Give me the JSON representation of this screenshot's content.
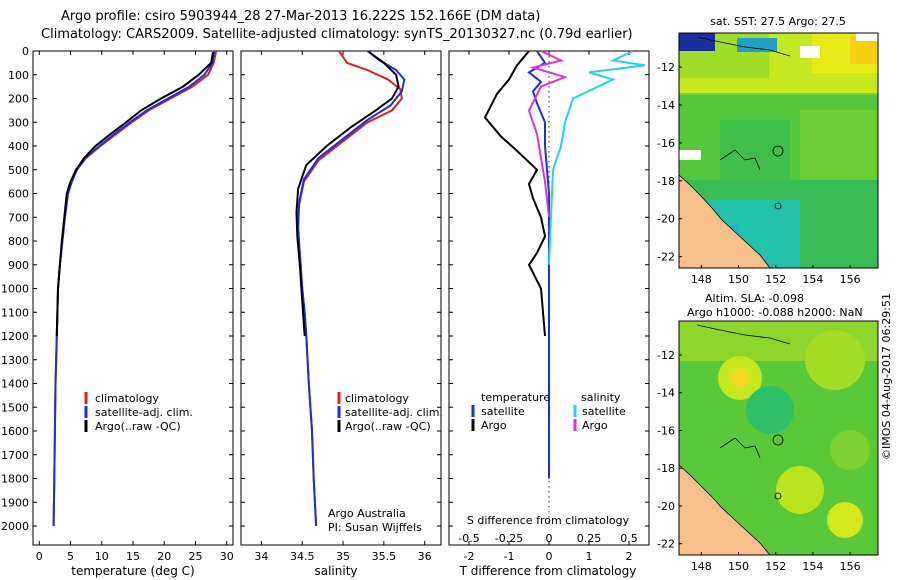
{
  "header": {
    "line1": "Argo profile: csiro 5903944_28 27-Mar-2013 16.222S 152.166E (DM data)",
    "line2": "Climatology: CARS2009. Satellite-adjusted climatology: synTS_20130327.nc (0.79d earlier)"
  },
  "colors": {
    "climatology": "#e02020",
    "satellite": "#1a2fe0",
    "argo": "#000000",
    "sat_salinity": "#22d6e6",
    "argo_salinity": "#e030e0"
  },
  "chart_data": [
    {
      "type": "line",
      "id": "temperature",
      "xlabel": "temperature (deg C)",
      "ylabel": "",
      "xlim": [
        -1,
        31
      ],
      "ylim": [
        2080,
        0
      ],
      "xticks": [
        0,
        5,
        10,
        15,
        20,
        25,
        30
      ],
      "yticks": [
        0,
        100,
        200,
        300,
        400,
        500,
        600,
        700,
        800,
        900,
        1000,
        1100,
        1200,
        1300,
        1400,
        1500,
        1600,
        1700,
        1800,
        1900,
        2000
      ],
      "legend": [
        "climatology",
        "satellite-adj. clim.",
        "Argo(..raw -QC)"
      ],
      "series": [
        {
          "name": "climatology",
          "color": "#e02020",
          "x": [
            28.3,
            27.9,
            27.0,
            24.5,
            21.0,
            17.5,
            14.8,
            12.3,
            9.8,
            7.5,
            6.0,
            5.2,
            4.6,
            4.1,
            3.7,
            3.3,
            3.0,
            2.8,
            2.6,
            2.5,
            2.4,
            2.3
          ],
          "y": [
            0,
            50,
            100,
            150,
            200,
            250,
            300,
            350,
            400,
            450,
            500,
            550,
            600,
            700,
            800,
            900,
            1000,
            1200,
            1400,
            1600,
            1800,
            2000
          ]
        },
        {
          "name": "satellite-adj. clim.",
          "color": "#1a2fe0",
          "x": [
            28.0,
            27.7,
            26.4,
            24.0,
            20.6,
            17.2,
            14.5,
            12.0,
            9.6,
            7.4,
            6.0,
            5.2,
            4.6,
            4.1,
            3.7,
            3.3,
            3.0,
            2.8,
            2.6,
            2.5,
            2.4,
            2.3
          ],
          "y": [
            0,
            50,
            100,
            150,
            200,
            250,
            300,
            350,
            400,
            450,
            500,
            550,
            600,
            700,
            800,
            900,
            1000,
            1200,
            1400,
            1600,
            1800,
            2000
          ]
        },
        {
          "name": "Argo(..raw -QC)",
          "color": "#000000",
          "x": [
            27.8,
            27.5,
            25.5,
            23.0,
            19.5,
            16.3,
            13.9,
            11.4,
            9.0,
            7.2,
            5.9,
            5.0,
            4.4,
            4.0,
            3.6,
            3.3,
            3.0,
            2.9,
            2.8
          ],
          "y": [
            5,
            50,
            100,
            150,
            200,
            250,
            300,
            350,
            400,
            450,
            500,
            550,
            600,
            700,
            800,
            900,
            1000,
            1100,
            1200
          ]
        }
      ]
    },
    {
      "type": "line",
      "id": "salinity",
      "xlabel": "salinity",
      "xlim": [
        33.75,
        36.2
      ],
      "ylim": [
        2080,
        0
      ],
      "xticks": [
        34,
        34.5,
        35,
        35.5,
        36
      ],
      "legend": [
        "climatology",
        "satellite-adj. clim.",
        "Argo(..raw -QC)"
      ],
      "annotation": [
        "Argo Australia",
        "PI: Susan Wijffels"
      ],
      "series": [
        {
          "name": "climatology",
          "color": "#e02020",
          "x": [
            34.95,
            35.05,
            35.3,
            35.55,
            35.7,
            35.72,
            35.6,
            35.3,
            35.0,
            34.7,
            34.52,
            34.46,
            34.45,
            34.47,
            34.5,
            34.53,
            34.55,
            34.58,
            34.62,
            34.64,
            34.67
          ],
          "y": [
            0,
            50,
            80,
            120,
            160,
            200,
            250,
            300,
            380,
            460,
            550,
            650,
            750,
            850,
            1000,
            1100,
            1200,
            1400,
            1600,
            1800,
            2000
          ]
        },
        {
          "name": "satellite-adj. clim.",
          "color": "#1a2fe0",
          "x": [
            35.3,
            35.45,
            35.65,
            35.75,
            35.72,
            35.58,
            35.3,
            35.0,
            34.7,
            34.52,
            34.46,
            34.45,
            34.47,
            34.5,
            34.53,
            34.55,
            34.58,
            34.62,
            34.64,
            34.67
          ],
          "y": [
            0,
            40,
            80,
            120,
            170,
            230,
            290,
            370,
            450,
            540,
            640,
            740,
            850,
            1000,
            1100,
            1200,
            1400,
            1600,
            1800,
            2000
          ]
        },
        {
          "name": "Argo(..raw -QC)",
          "color": "#000000",
          "x": [
            35.32,
            35.5,
            35.65,
            35.68,
            35.6,
            35.4,
            35.1,
            34.8,
            34.55,
            34.45,
            34.43,
            34.44,
            34.47,
            34.5,
            34.53
          ],
          "y": [
            5,
            50,
            100,
            150,
            200,
            250,
            320,
            400,
            480,
            580,
            680,
            780,
            900,
            1050,
            1200
          ]
        }
      ]
    },
    {
      "type": "line",
      "id": "difference",
      "xlabel": "T difference from climatology",
      "xlabel_top": "S difference from climatology",
      "xlim": [
        -2.5,
        2.5
      ],
      "ylim": [
        2080,
        0
      ],
      "xticks_T": [
        -2,
        -1,
        0,
        1,
        2
      ],
      "xticks_S": [
        -0.5,
        -0.25,
        0,
        0.25,
        0.5
      ],
      "legend_titles": [
        "temperature",
        "salinity"
      ],
      "legend_T": [
        "satellite",
        "Argo"
      ],
      "legend_S": [
        "satellite",
        "Argo"
      ],
      "series": [
        {
          "name": "T satellite",
          "color": "#1a2fe0",
          "x": [
            -0.3,
            -0.1,
            -0.5,
            -0.2,
            -0.4,
            -0.3,
            -0.1,
            -0.1,
            -0.05,
            0,
            0,
            0,
            0,
            0,
            0
          ],
          "y": [
            0,
            50,
            90,
            130,
            170,
            220,
            300,
            400,
            500,
            600,
            800,
            1000,
            1300,
            1600,
            1800
          ]
        },
        {
          "name": "T Argo",
          "color": "#000000",
          "x": [
            -0.5,
            -0.8,
            -1.0,
            -1.3,
            -1.6,
            -1.2,
            -0.8,
            -0.3,
            -0.5,
            -0.4,
            -0.2,
            -0.1,
            -0.3,
            -0.5,
            -0.2,
            -0.1
          ],
          "y": [
            0,
            60,
            120,
            180,
            280,
            360,
            420,
            500,
            560,
            620,
            700,
            780,
            850,
            900,
            1000,
            1200
          ]
        },
        {
          "name": "S satellite",
          "color": "#22d6e6",
          "x": [
            2.1,
            1.6,
            2.4,
            1.0,
            1.6,
            0.6,
            0.4,
            0.3,
            0.1,
            0.05,
            0
          ],
          "y": [
            0,
            40,
            60,
            90,
            120,
            200,
            300,
            400,
            500,
            700,
            900
          ]
        },
        {
          "name": "S Argo",
          "color": "#e030e0",
          "x": [
            -0.2,
            0.3,
            -0.4,
            0.4,
            -0.2,
            -0.5,
            -0.3,
            -0.2,
            -0.1,
            0
          ],
          "y": [
            0,
            40,
            70,
            110,
            150,
            250,
            350,
            450,
            550,
            700
          ]
        }
      ]
    },
    {
      "type": "heatmap",
      "id": "sst_map",
      "title": "sat. SST: 27.5 Argo: 27.5",
      "xticks": [
        148,
        150,
        152,
        154,
        156
      ],
      "yticks": [
        -12,
        -14,
        -16,
        -18,
        -20,
        -22
      ],
      "xlim": [
        146.8,
        157.5
      ],
      "ylim": [
        -22.6,
        -10.2
      ],
      "argo_position": [
        152.166,
        -16.222
      ]
    },
    {
      "type": "heatmap",
      "id": "sla_map",
      "title_line1": "Altim. SLA: -0.098",
      "title_line2": "Argo h1000: -0.088 h2000: NaN",
      "xticks": [
        148,
        150,
        152,
        154,
        156
      ],
      "yticks": [
        -12,
        -14,
        -16,
        -18,
        -20,
        -22
      ],
      "xlim": [
        146.8,
        157.5
      ],
      "ylim": [
        -22.6,
        -10.2
      ],
      "argo_position": [
        152.166,
        -16.222
      ]
    }
  ],
  "stamp": "©IMOS 04-Aug-2017 06:29:51"
}
